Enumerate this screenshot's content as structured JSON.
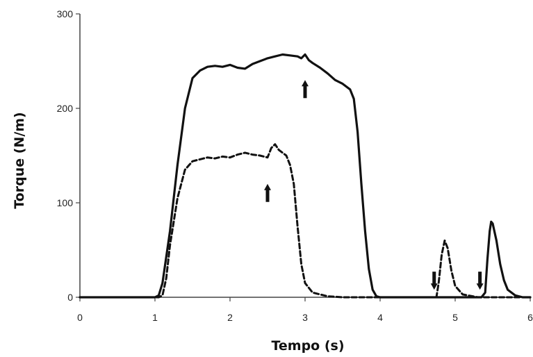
{
  "chart_data": {
    "type": "line",
    "title": "",
    "xlabel": "Tempo (s)",
    "ylabel": "Torque (N/m)",
    "xlim": [
      0,
      6
    ],
    "ylim": [
      0,
      300
    ],
    "xticks": [
      0,
      1,
      2,
      3,
      4,
      5,
      6
    ],
    "yticks": [
      0,
      100,
      200,
      300
    ],
    "grid": false,
    "legend": "none",
    "series": [
      {
        "style": "solid",
        "color": "#111111",
        "points": [
          [
            0,
            0
          ],
          [
            1.0,
            0
          ],
          [
            1.05,
            2
          ],
          [
            1.1,
            15
          ],
          [
            1.2,
            70
          ],
          [
            1.3,
            140
          ],
          [
            1.4,
            200
          ],
          [
            1.5,
            232
          ],
          [
            1.6,
            240
          ],
          [
            1.7,
            244
          ],
          [
            1.8,
            245
          ],
          [
            1.9,
            244
          ],
          [
            2.0,
            246
          ],
          [
            2.1,
            243
          ],
          [
            2.2,
            242
          ],
          [
            2.3,
            247
          ],
          [
            2.4,
            250
          ],
          [
            2.5,
            253
          ],
          [
            2.6,
            255
          ],
          [
            2.7,
            257
          ],
          [
            2.8,
            256
          ],
          [
            2.9,
            255
          ],
          [
            2.95,
            253
          ],
          [
            3.0,
            257
          ],
          [
            3.05,
            251
          ],
          [
            3.1,
            248
          ],
          [
            3.2,
            243
          ],
          [
            3.3,
            237
          ],
          [
            3.4,
            230
          ],
          [
            3.5,
            226
          ],
          [
            3.6,
            220
          ],
          [
            3.65,
            210
          ],
          [
            3.7,
            175
          ],
          [
            3.75,
            120
          ],
          [
            3.8,
            70
          ],
          [
            3.85,
            30
          ],
          [
            3.9,
            8
          ],
          [
            3.95,
            1
          ],
          [
            4.0,
            0
          ],
          [
            5.35,
            0
          ],
          [
            5.4,
            5
          ],
          [
            5.43,
            40
          ],
          [
            5.46,
            70
          ],
          [
            5.48,
            80
          ],
          [
            5.5,
            78
          ],
          [
            5.55,
            60
          ],
          [
            5.6,
            35
          ],
          [
            5.65,
            18
          ],
          [
            5.7,
            8
          ],
          [
            5.8,
            2
          ],
          [
            5.9,
            0
          ],
          [
            6.0,
            0
          ]
        ]
      },
      {
        "style": "dashed",
        "color": "#111111",
        "points": [
          [
            0,
            0
          ],
          [
            1.05,
            0
          ],
          [
            1.1,
            2
          ],
          [
            1.15,
            20
          ],
          [
            1.2,
            55
          ],
          [
            1.3,
            105
          ],
          [
            1.4,
            135
          ],
          [
            1.5,
            144
          ],
          [
            1.6,
            146
          ],
          [
            1.7,
            148
          ],
          [
            1.8,
            147
          ],
          [
            1.9,
            149
          ],
          [
            2.0,
            148
          ],
          [
            2.1,
            151
          ],
          [
            2.2,
            153
          ],
          [
            2.3,
            151
          ],
          [
            2.4,
            150
          ],
          [
            2.5,
            148
          ],
          [
            2.55,
            158
          ],
          [
            2.6,
            162
          ],
          [
            2.65,
            156
          ],
          [
            2.7,
            153
          ],
          [
            2.75,
            150
          ],
          [
            2.8,
            140
          ],
          [
            2.85,
            120
          ],
          [
            2.9,
            75
          ],
          [
            2.95,
            35
          ],
          [
            3.0,
            15
          ],
          [
            3.1,
            5
          ],
          [
            3.3,
            1
          ],
          [
            3.5,
            0
          ],
          [
            4.75,
            0
          ],
          [
            4.78,
            15
          ],
          [
            4.82,
            45
          ],
          [
            4.86,
            60
          ],
          [
            4.9,
            52
          ],
          [
            4.95,
            28
          ],
          [
            5.0,
            12
          ],
          [
            5.1,
            3
          ],
          [
            5.3,
            0
          ],
          [
            6.0,
            0
          ]
        ]
      }
    ],
    "annotations": [
      {
        "type": "arrow-up",
        "x": 3.0,
        "y": 230
      },
      {
        "type": "arrow-up",
        "x": 2.5,
        "y": 120
      },
      {
        "type": "arrow-down",
        "x": 4.72,
        "y": 8
      },
      {
        "type": "arrow-down",
        "x": 5.33,
        "y": 8
      }
    ]
  }
}
